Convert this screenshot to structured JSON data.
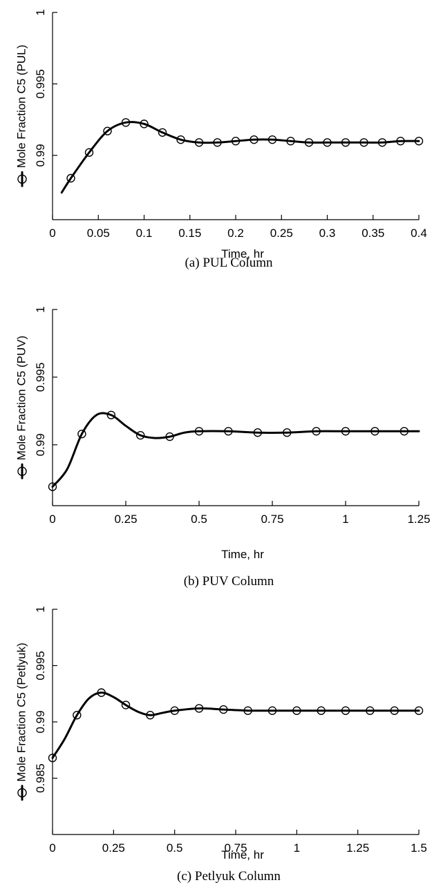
{
  "chart_data": [
    {
      "type": "line",
      "caption": "(a) PUL Column",
      "xlabel": "Time, hr",
      "ylabel": "Mole Fraction C5 (PUL)",
      "legend_marker": "circle",
      "xlim": [
        0,
        0.4
      ],
      "ylim": [
        0.985,
        1.0
      ],
      "xticks": [
        0,
        0.05,
        0.1,
        0.15,
        0.2,
        0.25,
        0.3,
        0.35,
        0.4
      ],
      "xtick_labels": [
        "0",
        "0.05",
        "0.1",
        "0.15",
        "0.2",
        "0.25",
        "0.3",
        "0.35",
        "0.4"
      ],
      "yticks": [
        0.99,
        0.995,
        1.0
      ],
      "ytick_labels": [
        "0.99",
        "0.995",
        "1"
      ],
      "series": [
        {
          "x": [
            0.01,
            0.02,
            0.04,
            0.06,
            0.08,
            0.1,
            0.12,
            0.14,
            0.16,
            0.18,
            0.2,
            0.22,
            0.24,
            0.26,
            0.28,
            0.3,
            0.32,
            0.34,
            0.36,
            0.38,
            0.4
          ],
          "y": [
            0.9874,
            0.9884,
            0.9902,
            0.9917,
            0.9923,
            0.9922,
            0.9916,
            0.9911,
            0.9909,
            0.9909,
            0.991,
            0.9911,
            0.9911,
            0.991,
            0.9909,
            0.9909,
            0.9909,
            0.9909,
            0.9909,
            0.991,
            0.991
          ],
          "markers_x": [
            0.02,
            0.04,
            0.06,
            0.08,
            0.1,
            0.12,
            0.14,
            0.16,
            0.18,
            0.2,
            0.22,
            0.24,
            0.26,
            0.28,
            0.3,
            0.32,
            0.34,
            0.36,
            0.38,
            0.4
          ]
        }
      ]
    },
    {
      "type": "line",
      "caption": "(b) PUV Column",
      "xlabel": "Time, hr",
      "ylabel": "Mole Fraction C5 (PUV)",
      "legend_marker": "circle",
      "xlim": [
        0,
        1.25
      ],
      "ylim": [
        0.985,
        1.0
      ],
      "xticks": [
        0,
        0.25,
        0.5,
        0.75,
        1,
        1.25
      ],
      "xtick_labels": [
        "0",
        "0.25",
        "0.5",
        "0.75",
        "1",
        "1.25"
      ],
      "yticks": [
        0.99,
        0.995,
        1.0
      ],
      "ytick_labels": [
        "0.99",
        "0.995",
        "1"
      ],
      "series": [
        {
          "x": [
            0,
            0.05,
            0.1,
            0.15,
            0.2,
            0.25,
            0.3,
            0.35,
            0.4,
            0.45,
            0.5,
            0.6,
            0.7,
            0.8,
            0.9,
            1.0,
            1.1,
            1.2,
            1.25
          ],
          "y": [
            0.9869,
            0.9882,
            0.9908,
            0.9922,
            0.9922,
            0.9914,
            0.9907,
            0.9905,
            0.9906,
            0.9909,
            0.991,
            0.991,
            0.9909,
            0.9909,
            0.991,
            0.991,
            0.991,
            0.991,
            0.991
          ],
          "markers_x": [
            0,
            0.1,
            0.2,
            0.3,
            0.4,
            0.5,
            0.6,
            0.7,
            0.8,
            0.9,
            1.0,
            1.1,
            1.2
          ]
        }
      ]
    },
    {
      "type": "line",
      "caption": "(c) Petlyuk Column",
      "xlabel": "Time, hr",
      "ylabel": "Mole Fraction C5 (Petlyuk)",
      "legend_marker": "circle",
      "xlim": [
        0,
        1.5
      ],
      "ylim": [
        0.98,
        1.0
      ],
      "xticks": [
        0,
        0.25,
        0.5,
        0.75,
        1,
        1.25,
        1.5
      ],
      "xtick_labels": [
        "0",
        "0.25",
        "0.5",
        "0.75",
        "1",
        "1.25",
        "1.5"
      ],
      "yticks": [
        0.985,
        0.99,
        0.995,
        1.0
      ],
      "ytick_labels": [
        "0.985",
        "0.99",
        "0.995",
        "1"
      ],
      "series": [
        {
          "x": [
            0,
            0.05,
            0.1,
            0.15,
            0.2,
            0.25,
            0.3,
            0.35,
            0.4,
            0.45,
            0.5,
            0.6,
            0.7,
            0.8,
            0.9,
            1.0,
            1.1,
            1.2,
            1.3,
            1.4,
            1.5
          ],
          "y": [
            0.9868,
            0.9885,
            0.9906,
            0.9921,
            0.9926,
            0.9922,
            0.9915,
            0.9909,
            0.9906,
            0.9908,
            0.991,
            0.9912,
            0.9911,
            0.991,
            0.991,
            0.991,
            0.991,
            0.991,
            0.991,
            0.991,
            0.991
          ],
          "markers_x": [
            0,
            0.1,
            0.2,
            0.3,
            0.4,
            0.5,
            0.6,
            0.7,
            0.8,
            0.9,
            1.0,
            1.1,
            1.2,
            1.3,
            1.4,
            1.5
          ]
        }
      ]
    }
  ]
}
